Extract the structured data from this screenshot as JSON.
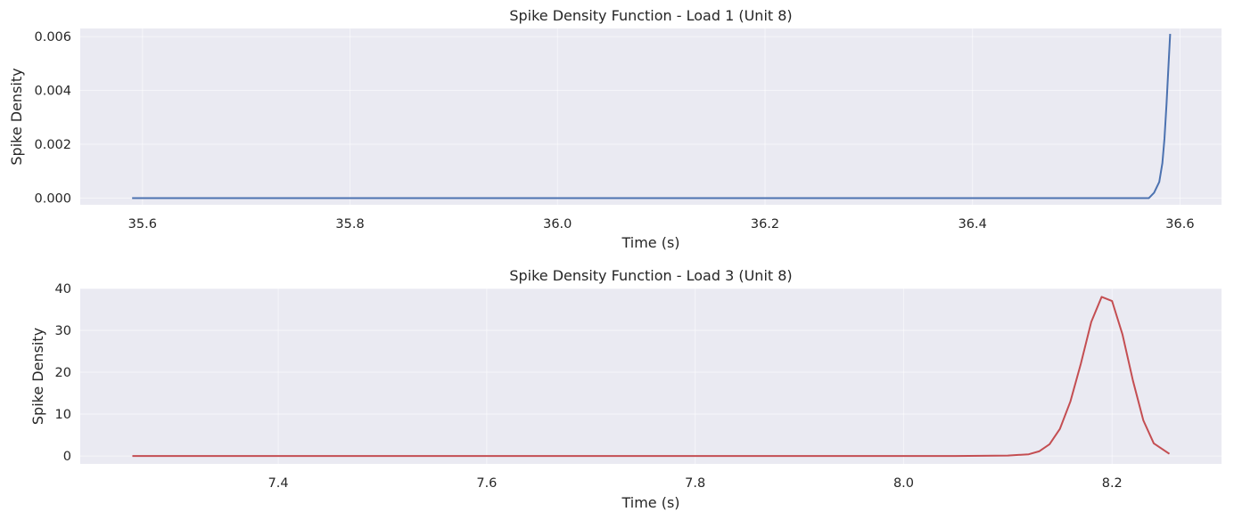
{
  "chart_data": [
    {
      "type": "line",
      "title": "Spike Density Function - Load 1 (Unit 8)",
      "xlabel": "Time (s)",
      "ylabel": "Spike Density",
      "xlim": [
        35.54,
        36.64
      ],
      "ylim": [
        -0.00025,
        0.0063
      ],
      "xticks": [
        35.6,
        35.8,
        36.0,
        36.2,
        36.4,
        36.6
      ],
      "xtick_labels": [
        "35.6",
        "35.8",
        "36.0",
        "36.2",
        "36.4",
        "36.6"
      ],
      "yticks": [
        0.0,
        0.002,
        0.004,
        0.006
      ],
      "ytick_labels": [
        "0.000",
        "0.002",
        "0.004",
        "0.006"
      ],
      "grid": true,
      "color": "#4c72b0",
      "series": [
        {
          "x": [
            35.59,
            36.0,
            36.4,
            36.57,
            36.575,
            36.58,
            36.583,
            36.585,
            36.587,
            36.589,
            36.5905
          ],
          "y": [
            0.0,
            0.0,
            0.0,
            0.0,
            0.0002,
            0.0006,
            0.0013,
            0.0022,
            0.0035,
            0.005,
            0.0061
          ]
        }
      ]
    },
    {
      "type": "line",
      "title": "Spike Density Function - Load 3 (Unit 8)",
      "xlabel": "Time (s)",
      "ylabel": "Spike Density",
      "xlim": [
        7.21,
        8.305
      ],
      "ylim": [
        -1.9,
        40
      ],
      "xticks": [
        7.4,
        7.6,
        7.8,
        8.0,
        8.2
      ],
      "xtick_labels": [
        "7.4",
        "7.6",
        "7.8",
        "8.0",
        "8.2"
      ],
      "yticks": [
        0,
        10,
        20,
        30,
        40
      ],
      "ytick_labels": [
        "0",
        "10",
        "20",
        "30",
        "40"
      ],
      "grid": true,
      "color": "#c44e52",
      "series": [
        {
          "x": [
            7.26,
            7.5,
            7.8,
            8.05,
            8.1,
            8.12,
            8.13,
            8.14,
            8.15,
            8.16,
            8.17,
            8.18,
            8.19,
            8.2,
            8.21,
            8.22,
            8.23,
            8.24,
            8.255
          ],
          "y": [
            0.0,
            0.0,
            0.0,
            0.0,
            0.1,
            0.4,
            1.1,
            2.8,
            6.5,
            13.0,
            22.0,
            32.0,
            38.0,
            37.0,
            29.0,
            18.0,
            8.5,
            3.0,
            0.5
          ]
        }
      ]
    }
  ]
}
